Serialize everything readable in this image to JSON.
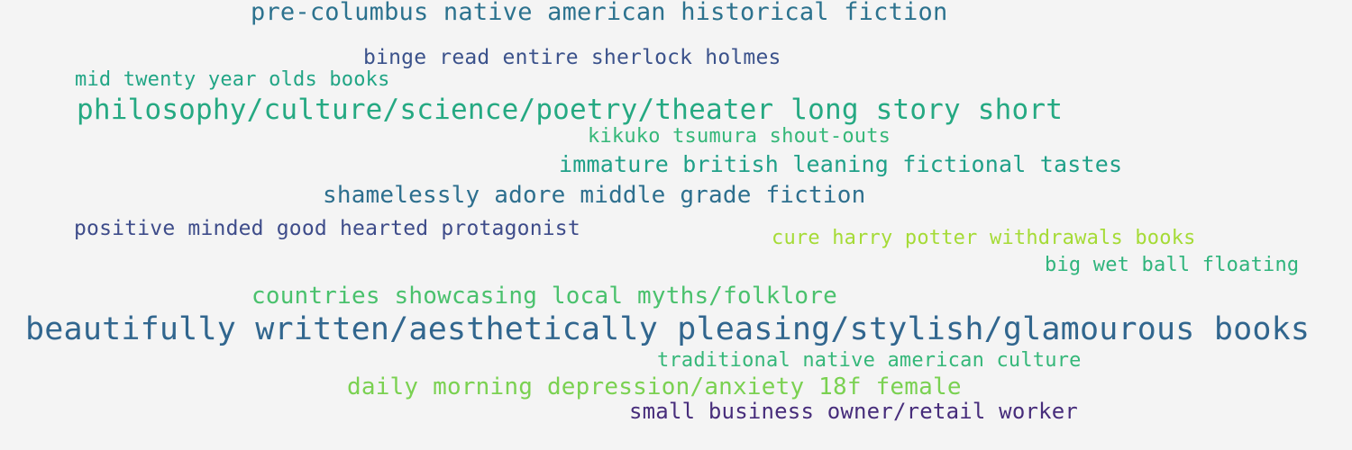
{
  "colors": {
    "background": "#f4f4f4"
  },
  "words": [
    {
      "text": "pre-columbus native american historical fiction",
      "color": "#2c728e"
    },
    {
      "text": "binge read entire sherlock holmes",
      "color": "#3b528b"
    },
    {
      "text": "mid twenty year olds books",
      "color": "#21a585"
    },
    {
      "text": "philosophy/culture/science/poetry/theater long story short",
      "color": "#25a982"
    },
    {
      "text": "kikuko tsumura shout-outs",
      "color": "#35b779"
    },
    {
      "text": "immature british leaning fictional tastes",
      "color": "#1fa088"
    },
    {
      "text": "shamelessly adore middle grade fiction",
      "color": "#2d6f8e"
    },
    {
      "text": "positive minded good hearted protagonist",
      "color": "#3e4c8a"
    },
    {
      "text": "cure harry potter withdrawals books",
      "color": "#a5db36"
    },
    {
      "text": "big wet ball floating",
      "color": "#2fb47c"
    },
    {
      "text": "countries showcasing local myths/folklore",
      "color": "#4ac16d"
    },
    {
      "text": "beautifully written/aesthetically pleasing/stylish/glamourous books",
      "color": "#31668e"
    },
    {
      "text": "traditional native american culture",
      "color": "#35b779"
    },
    {
      "text": "daily morning depression/anxiety 18f female",
      "color": "#7ad151"
    },
    {
      "text": "small business owner/retail worker",
      "color": "#472d7b"
    }
  ]
}
